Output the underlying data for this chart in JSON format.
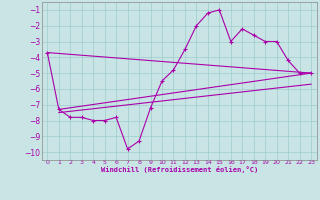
{
  "xlabel": "Windchill (Refroidissement éolien,°C)",
  "background_color": "#c8e4e4",
  "grid_color": "#a0cccc",
  "line_color": "#aa00aa",
  "xlim": [
    -0.5,
    23.5
  ],
  "ylim": [
    -10.5,
    -0.5
  ],
  "yticks": [
    -10,
    -9,
    -8,
    -7,
    -6,
    -5,
    -4,
    -3,
    -2,
    -1
  ],
  "xticks": [
    0,
    1,
    2,
    3,
    4,
    5,
    6,
    7,
    8,
    9,
    10,
    11,
    12,
    13,
    14,
    15,
    16,
    17,
    18,
    19,
    20,
    21,
    22,
    23
  ],
  "series1_x": [
    0,
    1,
    2,
    3,
    4,
    5,
    6,
    7,
    8,
    9,
    10,
    11,
    12,
    13,
    14,
    15,
    16,
    17,
    18,
    19,
    20,
    21,
    22,
    23
  ],
  "series1_y": [
    -3.7,
    -7.3,
    -7.8,
    -7.8,
    -8.0,
    -8.0,
    -7.8,
    -9.8,
    -9.3,
    -7.2,
    -5.5,
    -4.8,
    -3.5,
    -2.0,
    -1.2,
    -1.0,
    -3.0,
    -2.2,
    -2.6,
    -3.0,
    -3.0,
    -4.2,
    -5.0,
    -5.0
  ],
  "line1_x": [
    0,
    23
  ],
  "line1_y": [
    -3.7,
    -5.0
  ],
  "line2_x": [
    1,
    23
  ],
  "line2_y": [
    -7.3,
    -5.0
  ],
  "line3_x": [
    1,
    23
  ],
  "line3_y": [
    -7.5,
    -5.7
  ]
}
